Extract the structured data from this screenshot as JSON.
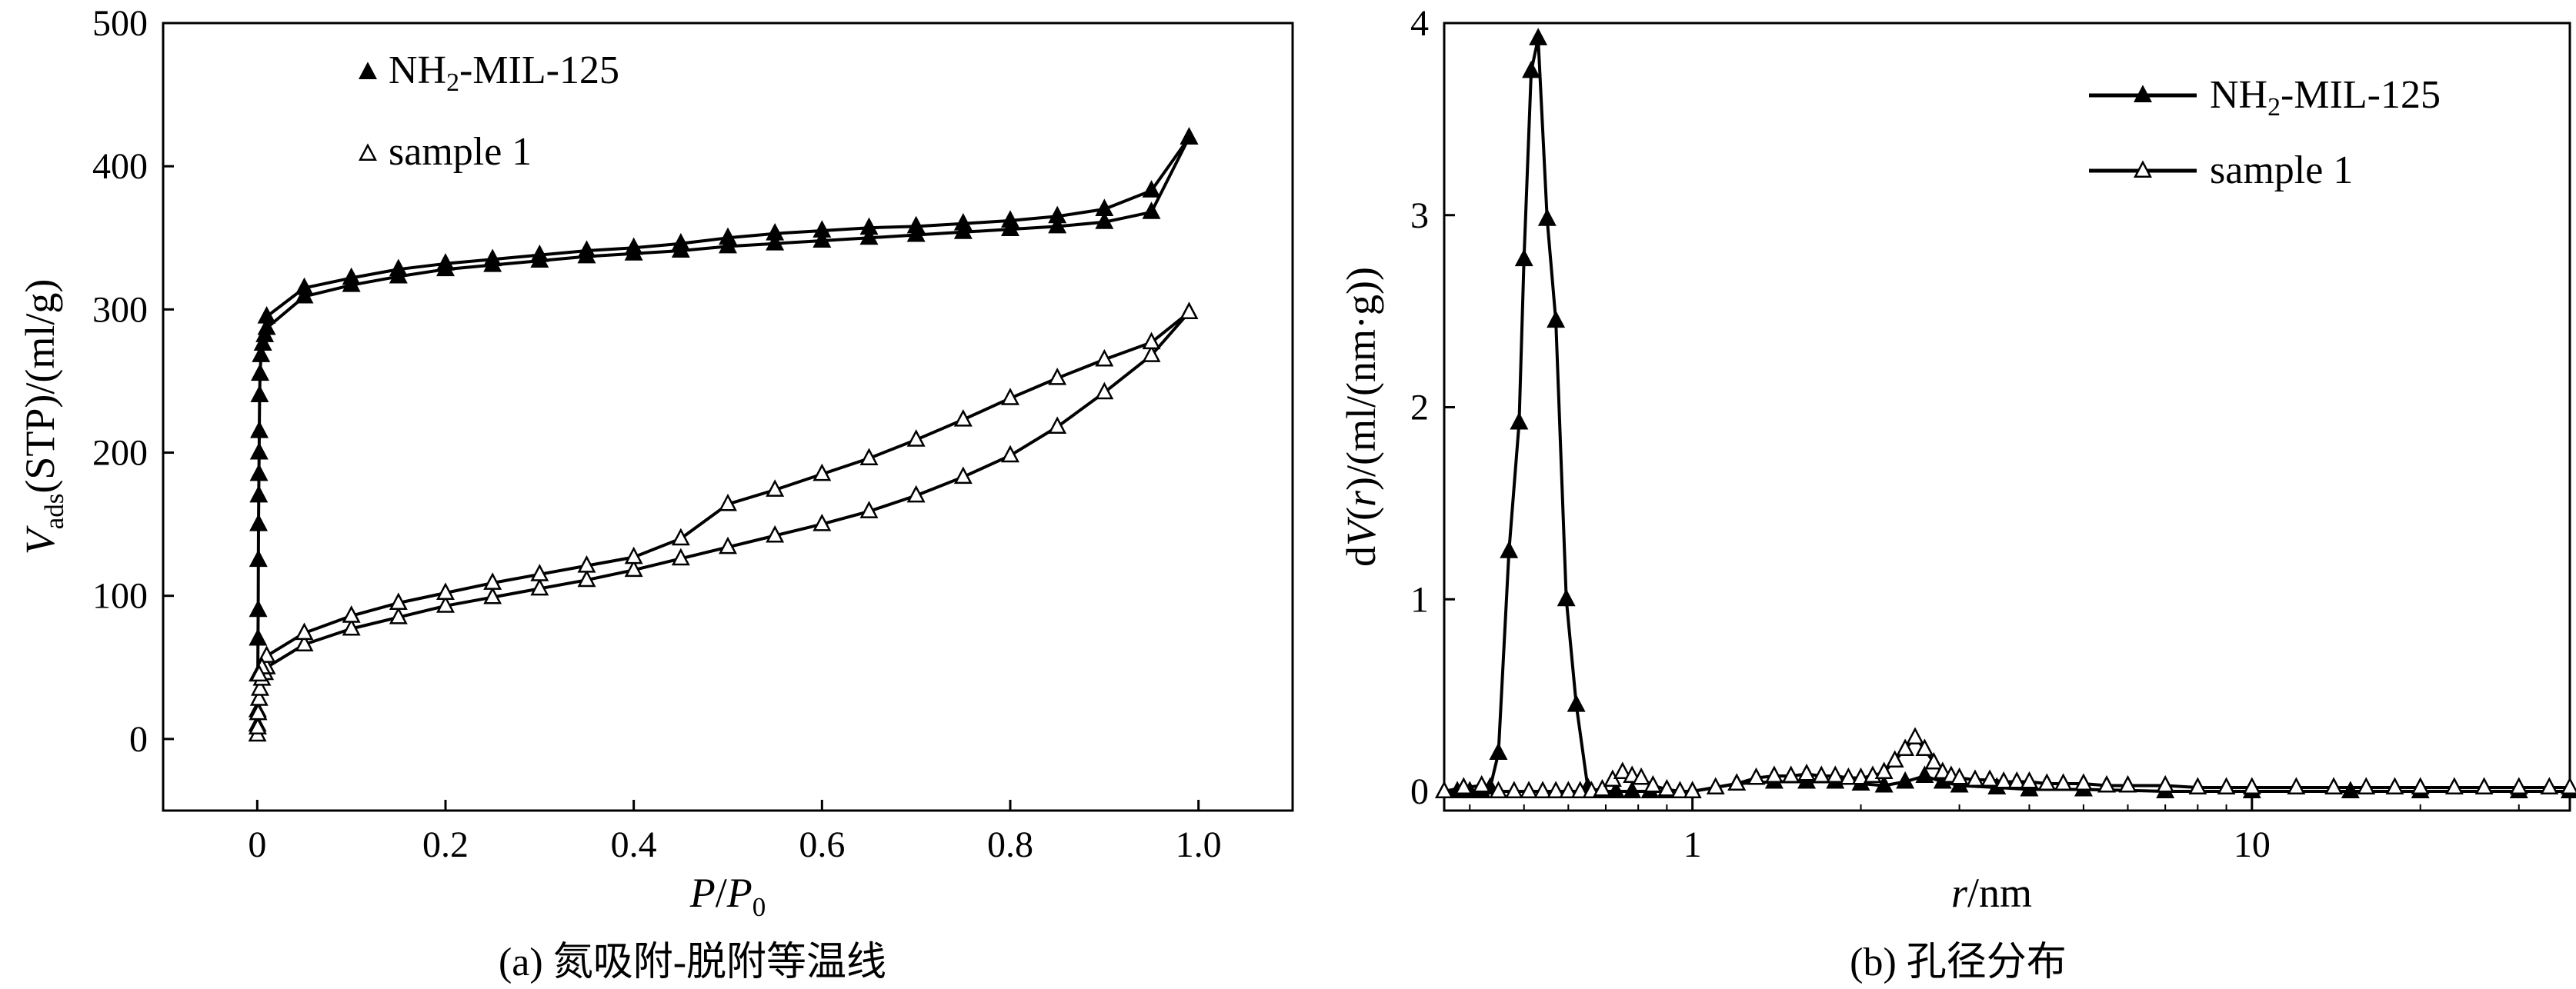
{
  "figure": {
    "caption_a": "(a) 氮吸附-脱附等温线",
    "caption_b": "(b) 孔径分布"
  },
  "chart_data": [
    {
      "type": "line",
      "xlabel": "P/P0",
      "ylabel": "Vads(STP)/(ml/g)",
      "xlim": [
        -0.1,
        1.1
      ],
      "ylim": [
        -50,
        500
      ],
      "x_ticks": [
        0,
        0.2,
        0.4,
        0.6,
        0.8,
        1.0
      ],
      "x_tick_labels": [
        "0",
        "0.2",
        "0.4",
        "0.6",
        "0.8",
        "1.0"
      ],
      "y_ticks": [
        0,
        100,
        200,
        300,
        400,
        500
      ],
      "y_tick_labels": [
        "0",
        "100",
        "200",
        "300",
        "400",
        "500"
      ],
      "grid": false,
      "legend_position": "top-left",
      "series": [
        {
          "name": "NH2-MIL-125",
          "marker": "filled-triangle",
          "adsorption": {
            "x": [
              0.0002,
              0.0004,
              0.0006,
              0.0008,
              0.001,
              0.0012,
              0.0014,
              0.0016,
              0.0018,
              0.002,
              0.0022,
              0.0025,
              0.003,
              0.004,
              0.006,
              0.008,
              0.01,
              0.05,
              0.1,
              0.15,
              0.2,
              0.25,
              0.3,
              0.35,
              0.4,
              0.45,
              0.5,
              0.55,
              0.6,
              0.65,
              0.7,
              0.75,
              0.8,
              0.85,
              0.9,
              0.95,
              0.99
            ],
            "y": [
              10,
              20,
              45,
              70,
              90,
              125,
              150,
              170,
              185,
              200,
              215,
              240,
              255,
              268,
              276,
              282,
              287,
              309,
              317,
              323,
              328,
              331,
              334,
              337,
              339,
              341,
              344,
              346,
              348,
              350,
              352,
              354,
              356,
              358,
              361,
              368,
              420
            ]
          },
          "desorption": {
            "x": [
              0.99,
              0.95,
              0.9,
              0.85,
              0.8,
              0.75,
              0.7,
              0.65,
              0.6,
              0.55,
              0.5,
              0.45,
              0.4,
              0.35,
              0.3,
              0.25,
              0.2,
              0.15,
              0.1,
              0.05,
              0.01
            ],
            "y": [
              420,
              383,
              370,
              365,
              362,
              360,
              358,
              357,
              355,
              353,
              350,
              346,
              343,
              341,
              338,
              335,
              332,
              328,
              322,
              315,
              295
            ]
          }
        },
        {
          "name": "sample 1",
          "marker": "open-triangle",
          "adsorption": {
            "x": [
              0.0002,
              0.0005,
              0.001,
              0.002,
              0.003,
              0.005,
              0.008,
              0.01,
              0.05,
              0.1,
              0.15,
              0.2,
              0.25,
              0.3,
              0.35,
              0.4,
              0.45,
              0.5,
              0.55,
              0.6,
              0.65,
              0.7,
              0.75,
              0.8,
              0.85,
              0.9,
              0.95,
              0.99
            ],
            "y": [
              3,
              8,
              18,
              28,
              35,
              42,
              46,
              50,
              66,
              77,
              85,
              93,
              99,
              105,
              111,
              118,
              126,
              134,
              142,
              150,
              159,
              170,
              183,
              198,
              218,
              242,
              268,
              298
            ]
          },
          "desorption": {
            "x": [
              0.99,
              0.95,
              0.9,
              0.85,
              0.8,
              0.75,
              0.7,
              0.65,
              0.6,
              0.55,
              0.5,
              0.45,
              0.4,
              0.35,
              0.3,
              0.25,
              0.2,
              0.15,
              0.1,
              0.05,
              0.01,
              0.005,
              0.002
            ],
            "y": [
              298,
              277,
              265,
              252,
              238,
              223,
              209,
              196,
              185,
              174,
              164,
              140,
              127,
              121,
              115,
              109,
              102,
              95,
              86,
              74,
              58,
              50,
              45
            ]
          }
        }
      ]
    },
    {
      "type": "line",
      "xlabel": "r/nm",
      "ylabel": "dV(r)/(ml/(nm·g))",
      "x_scale": "log",
      "xlim": [
        0.36,
        37
      ],
      "ylim": [
        -0.1,
        4.0
      ],
      "x_ticks": [
        1,
        10
      ],
      "x_tick_labels": [
        "1",
        "10"
      ],
      "y_ticks": [
        0,
        1,
        2,
        3,
        4
      ],
      "y_tick_labels": [
        "0",
        "1",
        "2",
        "3",
        "4"
      ],
      "grid": false,
      "legend_position": "top-right",
      "series": [
        {
          "name": "NH2-MIL-125",
          "marker": "filled-triangle",
          "x": [
            0.36,
            0.38,
            0.4,
            0.42,
            0.435,
            0.45,
            0.47,
            0.49,
            0.5,
            0.515,
            0.53,
            0.55,
            0.57,
            0.595,
            0.62,
            0.65,
            0.69,
            0.73,
            0.78,
            0.84,
            0.9,
            1.0,
            1.2,
            1.4,
            1.6,
            1.8,
            2.0,
            2.2,
            2.4,
            2.6,
            2.8,
            3.0,
            3.5,
            4.0,
            5.0,
            7.0,
            10,
            15,
            20,
            30,
            37
          ],
          "y": [
            0,
            0,
            0,
            0,
            0.02,
            0.2,
            1.25,
            1.92,
            2.77,
            3.75,
            3.92,
            2.98,
            2.45,
            1.0,
            0.45,
            0.02,
            0,
            0,
            0,
            0,
            0,
            0,
            0.04,
            0.05,
            0.05,
            0.05,
            0.04,
            0.03,
            0.05,
            0.08,
            0.05,
            0.03,
            0.02,
            0.01,
            0.01,
            0,
            0,
            0,
            0,
            0,
            0
          ]
        },
        {
          "name": "sample 1",
          "marker": "open-triangle",
          "x": [
            0.36,
            0.39,
            0.42,
            0.45,
            0.48,
            0.51,
            0.54,
            0.57,
            0.6,
            0.63,
            0.66,
            0.69,
            0.72,
            0.75,
            0.78,
            0.81,
            0.85,
            0.9,
            0.95,
            1.0,
            1.1,
            1.2,
            1.3,
            1.4,
            1.5,
            1.6,
            1.7,
            1.8,
            1.9,
            2.0,
            2.1,
            2.2,
            2.3,
            2.4,
            2.5,
            2.6,
            2.7,
            2.8,
            2.9,
            3.0,
            3.2,
            3.4,
            3.6,
            3.8,
            4.0,
            4.3,
            4.6,
            5.0,
            5.5,
            6.0,
            7.0,
            8.0,
            9.0,
            10,
            12,
            14,
            16,
            18,
            20,
            23,
            26,
            30,
            34,
            37
          ],
          "y": [
            0,
            0.02,
            0.03,
            0.0,
            0.0,
            0.0,
            0.0,
            0.0,
            0.0,
            0.0,
            0.0,
            0.01,
            0.06,
            0.1,
            0.08,
            0.07,
            0.03,
            0.01,
            0.0,
            0.0,
            0.02,
            0.04,
            0.07,
            0.08,
            0.08,
            0.09,
            0.08,
            0.08,
            0.07,
            0.07,
            0.08,
            0.1,
            0.16,
            0.22,
            0.28,
            0.22,
            0.15,
            0.1,
            0.08,
            0.07,
            0.06,
            0.06,
            0.05,
            0.05,
            0.05,
            0.04,
            0.04,
            0.04,
            0.03,
            0.03,
            0.03,
            0.02,
            0.02,
            0.02,
            0.02,
            0.02,
            0.02,
            0.02,
            0.02,
            0.02,
            0.02,
            0.02,
            0.02,
            0.02
          ]
        }
      ]
    }
  ]
}
